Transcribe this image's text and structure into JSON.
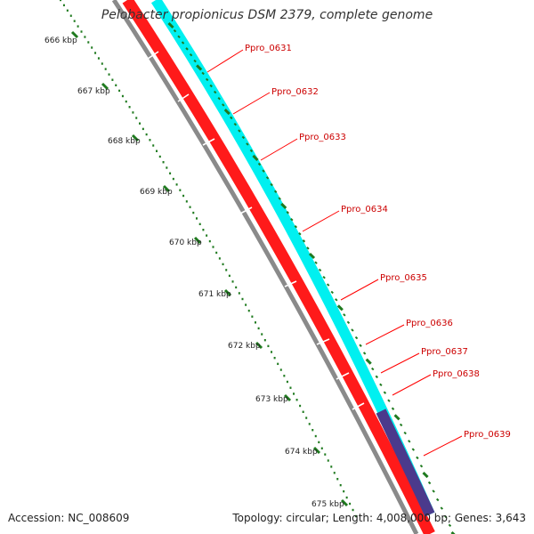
{
  "title": "Pelobacter propionicus DSM 2379, complete genome",
  "footer": {
    "accession_prefix": "Accession:",
    "accession": "NC_008609",
    "topology_text": "Topology: circular; Length: 4,008,000 bp; Genes: 3,643"
  },
  "ticks": [
    "666 kbp",
    "667 kbp",
    "668 kbp",
    "669 kbp",
    "670 kbp",
    "671 kbp",
    "672 kbp",
    "673 kbp",
    "674 kbp",
    "675 kbp"
  ],
  "genes": [
    "Ppro_0631",
    "Ppro_0632",
    "Ppro_0633",
    "Ppro_0634",
    "Ppro_0635",
    "Ppro_0636",
    "Ppro_0637",
    "Ppro_0638",
    "Ppro_0639"
  ],
  "colors": {
    "cds": "#ff0000",
    "rna": "#00ffff",
    "highlight": "#4b3a8c",
    "backbone": "#888888",
    "scale": "#1f7a1f",
    "label_line": "#ff0000",
    "label_text": "#cc0000"
  }
}
